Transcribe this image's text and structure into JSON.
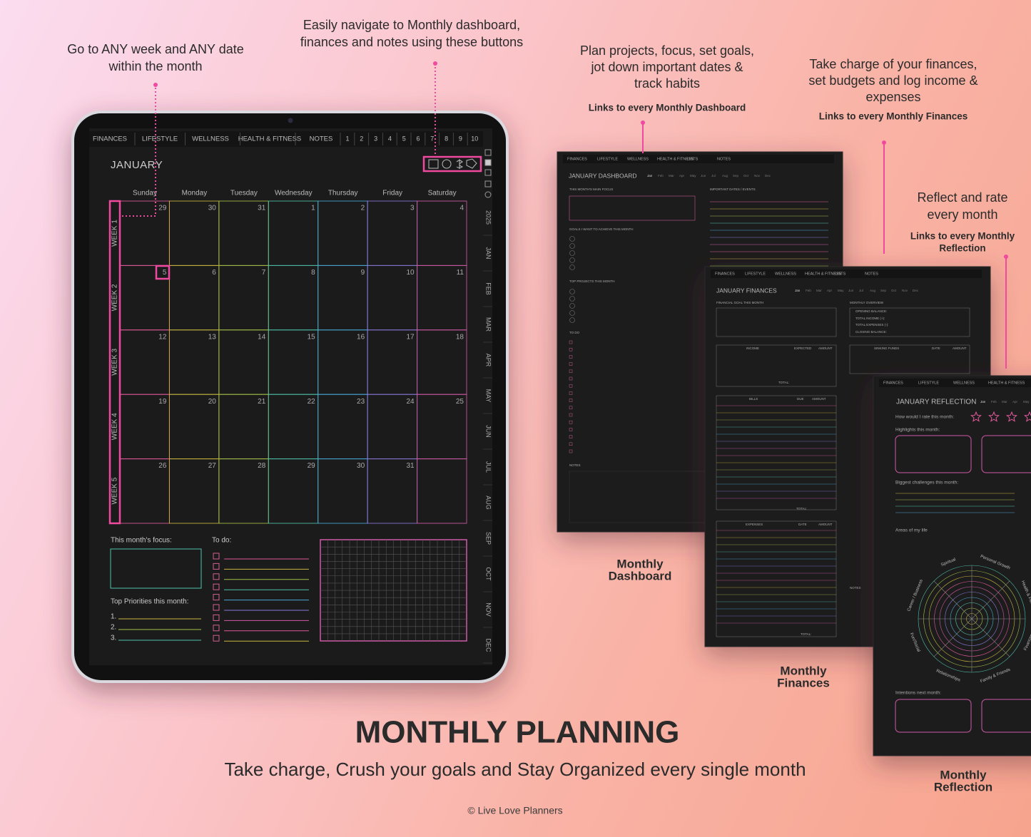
{
  "annotations": [
    {
      "lines": [
        "Go to ANY week and ANY date",
        "within the month"
      ]
    },
    {
      "lines": [
        "Easily navigate to Monthly dashboard,",
        "finances and notes using these buttons"
      ]
    },
    {
      "lines": [
        "Plan projects, focus, set goals,",
        "jot down important dates &",
        "track habits"
      ],
      "link_lines": [
        "Links to every Monthly Dashboard"
      ]
    },
    {
      "lines": [
        "Take charge of your finances,",
        "set budgets and log income &",
        "expenses"
      ],
      "link_lines": [
        "Links to every Monthly Finances"
      ]
    },
    {
      "lines": [
        "Reflect and rate",
        "every month"
      ],
      "link_lines": [
        "Links to every Monthly",
        "Reflection"
      ]
    }
  ],
  "tablet": {
    "tabs": [
      "FINANCES",
      "LIFESTYLE",
      "WELLNESS",
      "HEALTH & FITNESS",
      "NOTES"
    ],
    "tab_numbers": [
      1,
      2,
      3,
      4,
      5,
      6,
      7,
      8,
      9,
      10
    ],
    "month": "JANUARY",
    "weekdays": [
      "Sunday",
      "Monday",
      "Tuesday",
      "Wednesday",
      "Thursday",
      "Friday",
      "Saturday"
    ],
    "weeks": [
      "WEEK 1",
      "WEEK 2",
      "WEEK 3",
      "WEEK 4",
      "WEEK 5"
    ],
    "dates": [
      [
        29,
        30,
        31,
        1,
        2,
        3,
        4
      ],
      [
        5,
        6,
        7,
        8,
        9,
        10,
        11
      ],
      [
        12,
        13,
        14,
        15,
        16,
        17,
        18
      ],
      [
        19,
        20,
        21,
        22,
        23,
        24,
        25
      ],
      [
        26,
        27,
        28,
        29,
        30,
        31
      ]
    ],
    "side_tabs": [
      "2025",
      "JAN",
      "FEB",
      "MAR",
      "APR",
      "MAY",
      "JUN",
      "JUL",
      "AUG",
      "SEP",
      "OCT",
      "NOV",
      "DEC"
    ],
    "focus_label": "This month's focus:",
    "todo_label": "To do:",
    "priorities_label": "Top Priorities this month:",
    "priority_numbers": [
      "1.",
      "2.",
      "3."
    ]
  },
  "months": [
    "Jan",
    "Feb",
    "Mar",
    "Apr",
    "May",
    "Jun",
    "Jul",
    "Aug",
    "Sep",
    "Oct",
    "Nov",
    "Dec"
  ],
  "pages": [
    {
      "title": "JANUARY DASHBOARD",
      "caption_lines": [
        "Monthly",
        "Dashboard"
      ],
      "tabs": [
        "FINANCES",
        "LIFESTYLE",
        "WELLNESS",
        "HEALTH & FITNESS",
        "LISTS",
        "NOTES"
      ],
      "labels": [
        "THIS MONTH'S MAIN FOCUS",
        "IMPORTANT DATES / EVENTS",
        "GOALS I WANT TO ACHIEVE THIS MONTH",
        "TOP PROJECTS THIS MONTH",
        "TO DO",
        "NOTES"
      ]
    },
    {
      "title": "JANUARY FINANCES",
      "caption_lines": [
        "Monthly",
        "Finances"
      ],
      "tabs": [
        "FINANCES",
        "LIFESTYLE",
        "WELLNESS",
        "HEALTH & FITNESS",
        "LISTS",
        "NOTES"
      ],
      "labels": [
        "FINANCIAL GOAL THIS MONTH",
        "MONTHLY OVERVIEW",
        "OPENING BALANCE:",
        "TOTAL INCOME (+):",
        "TOTAL EXPENSES (-):",
        "CLOSING BALANCE:",
        "INCOME",
        "EXPECTED",
        "AMOUNT",
        "SINKING FUNDS",
        "DATE",
        "AMOUNT",
        "TOTAL:",
        "BILLS",
        "DUE",
        "AMOUNT",
        "TOTAL:",
        "EXPENSES",
        "DATE",
        "AMOUNT",
        "TOTAL:",
        "NOTES"
      ]
    },
    {
      "title": "JANUARY REFLECTION",
      "caption_lines": [
        "Monthly",
        "Reflection"
      ],
      "tabs": [
        "FINANCES",
        "LIFESTYLE",
        "WELLNESS",
        "HEALTH & FITNESS"
      ],
      "labels": [
        "How would I rate this month:",
        "Highlights this month:",
        "Biggest challenges this month:",
        "Areas of my life",
        "Intentions next month:"
      ],
      "wheel_labels": [
        "Spiritual",
        "Personal Growth",
        "Health & Fitness",
        "Finances",
        "Family & Friends",
        "Relationships",
        "Fun/Social",
        "Career / Business"
      ]
    }
  ],
  "footer": {
    "headline": "MONTHLY PLANNING",
    "subtitle": "Take charge, Crush your goals and Stay Organized every single month",
    "copyright": "© Live Love Planners"
  }
}
